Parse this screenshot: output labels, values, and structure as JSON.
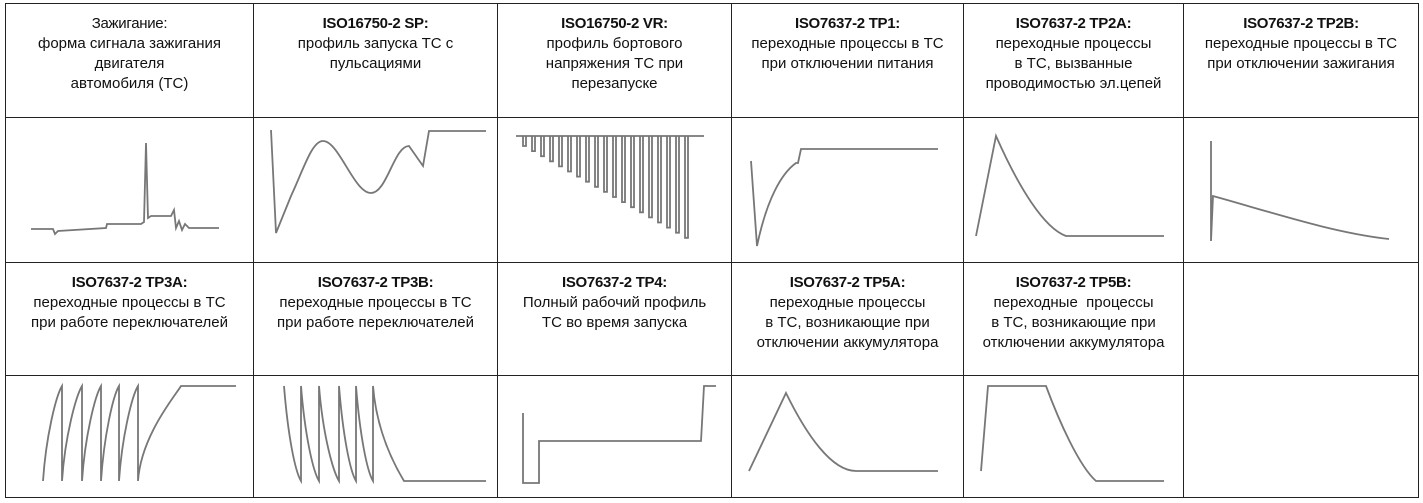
{
  "rows": [
    {
      "cells": [
        {
          "title": "Зажигание:",
          "lines": [
            "форма сигнала зажигания",
            "двигателя",
            "автомобиля (ТС)"
          ]
        },
        {
          "title": "ISO16750-2 SP:",
          "lines": [
            "профиль запуска ТС с",
            "пульсациями"
          ]
        },
        {
          "title": "ISO16750-2 VR:",
          "lines": [
            "профиль бортового",
            "напряжения ТС при",
            "перезапуске"
          ]
        },
        {
          "title": "ISO7637-2 TP1:",
          "lines": [
            "переходные процессы в ТС",
            "при отключении питания"
          ]
        },
        {
          "title": "ISO7637-2 TP2A:",
          "lines": [
            "переходные процессы",
            "в ТС, вызванные",
            "проводимостью эл.цепей"
          ]
        },
        {
          "title": "ISO7637-2 TP2B:",
          "lines": [
            "переходные процессы в ТС",
            "при отключении зажигания"
          ]
        }
      ]
    },
    {
      "cells": [
        {
          "title": "ISO7637-2 TP3A:",
          "lines": [
            "переходные процессы в ТС",
            "при работе переключателей"
          ]
        },
        {
          "title": "ISO7637-2 TP3B:",
          "lines": [
            "переходные процессы в ТС",
            "при работе переключателей"
          ]
        },
        {
          "title": "ISO7637-2 TP4:",
          "lines": [
            "Полный рабочий профиль",
            "ТС во время запуска"
          ]
        },
        {
          "title": "ISO7637-2 TP5A:",
          "lines": [
            "переходные процессы",
            "в ТС, возникающие при",
            "отключении аккумулятора"
          ]
        },
        {
          "title": "ISO7637-2 TP5B:",
          "lines": [
            "переходные  процессы",
            "в ТС, возникающие при",
            "отключении аккумулятора"
          ]
        }
      ]
    }
  ]
}
